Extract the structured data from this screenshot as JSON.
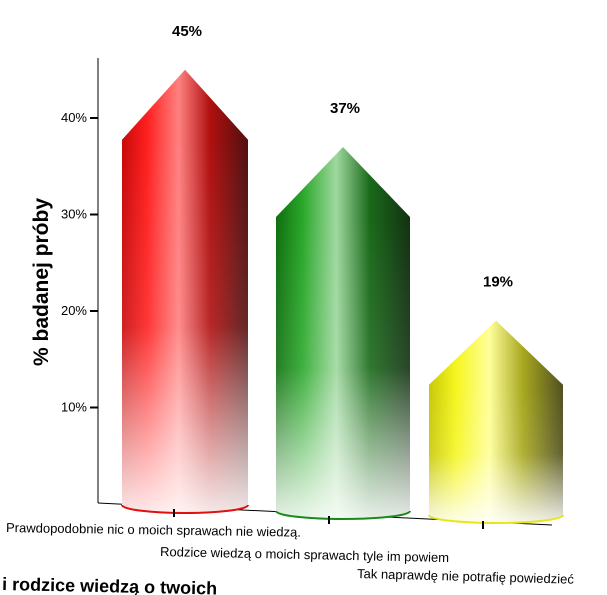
{
  "chart_data": {
    "type": "bar",
    "title": "",
    "xlabel": "",
    "ylabel": "% badanej próby",
    "categories": [
      "Prawdopodobnie nic o moich sprawach nie wiedzą.",
      "Rodzice wiedzą o moich sprawach tyle im powiem",
      "Tak naprawdę nie potrafię powiedzieć"
    ],
    "values": [
      45,
      37,
      19
    ],
    "data_labels": [
      "45%",
      "37%",
      "19%"
    ],
    "colors": [
      "#e01010",
      "#1a8a1a",
      "#e6e61a"
    ],
    "ylim": [
      0,
      50
    ],
    "yticks": [
      10,
      20,
      30,
      40
    ],
    "ytick_labels": [
      "10%",
      "20%",
      "30%",
      "40%"
    ],
    "grid": false,
    "legend": "none",
    "bar_shape": "cylinder-with-cone-top"
  },
  "caption": "i rodzice wiedzą o twoich"
}
